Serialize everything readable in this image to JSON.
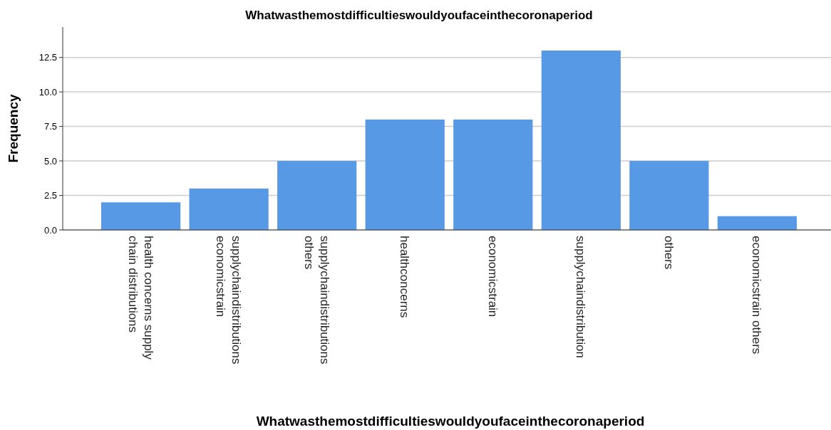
{
  "chart_data": {
    "type": "bar",
    "title": "Whatwasthemostdifficultieswouldyoufaceinthecoronaperiod",
    "xlabel": "Whatwasthemostdifficultieswouldyoufaceinthecoronaperiod",
    "ylabel": "Frequency",
    "categories": [
      "health concerns supply chain distributions",
      "supplychaindistributions economicstrain",
      "supplychaindistributions others",
      "healthconcerns",
      "economicstrain",
      "supplychaindistribution",
      "others",
      "economicstrain others"
    ],
    "values": [
      2,
      3,
      5,
      8,
      8,
      13,
      5,
      1
    ],
    "color": "#5899e6",
    "ylim": [
      0,
      14.7
    ],
    "yticks": [
      {
        "value": 0,
        "label": "0.0"
      },
      {
        "value": 2.5,
        "label": "2.5"
      },
      {
        "value": 5,
        "label": "5.0"
      },
      {
        "value": 7.5,
        "label": "7.5"
      },
      {
        "value": 10,
        "label": "10.0"
      },
      {
        "value": 12.5,
        "label": "12.5"
      }
    ],
    "grid": "y"
  }
}
